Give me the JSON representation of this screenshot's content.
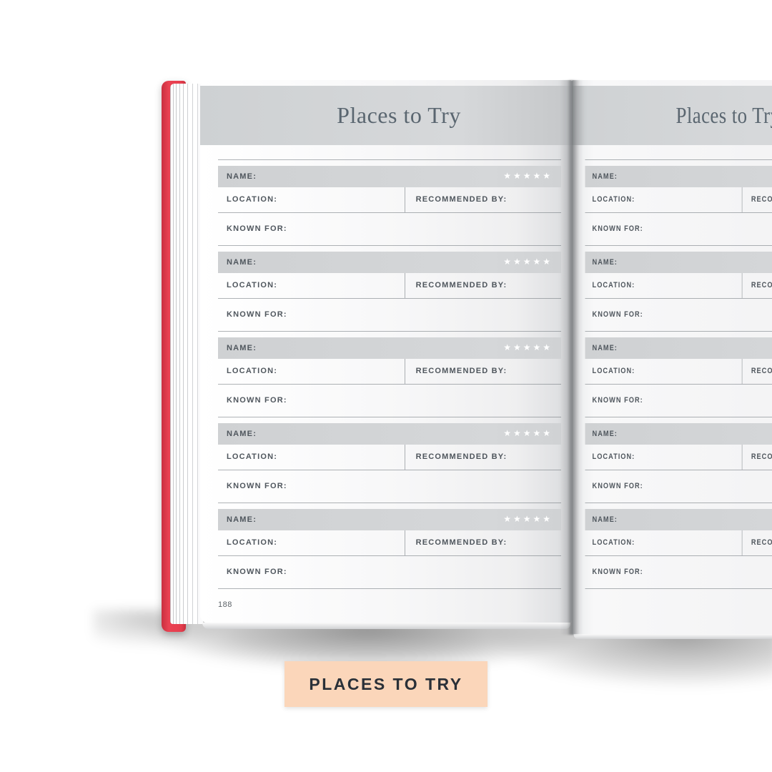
{
  "page_title": "Places to Try",
  "field_labels": {
    "name": "NAME:",
    "location": "LOCATION:",
    "recommended_by": "RECOMMENDED BY:",
    "known_for": "KNOWN FOR:"
  },
  "rating": {
    "max_stars": 5,
    "stars_display": "★★★★★"
  },
  "left_page": {
    "title": "Places to Try",
    "page_number": "188",
    "entry_count": 5
  },
  "right_page": {
    "title": "Places to Try",
    "entry_count": 5
  },
  "sticker_label": "PLACES TO TRY",
  "colors": {
    "cover_red": "#e63e4e",
    "banner_gray": "#d2d5d7",
    "name_bar_gray": "#d3d5d7",
    "page_bg": "#f5f5f6",
    "title_text": "#5a6670",
    "label_text": "#4f565d",
    "stars": "#ffffff",
    "sticker_bg": "#fbd6ba",
    "sticker_text": "#2a3038"
  }
}
